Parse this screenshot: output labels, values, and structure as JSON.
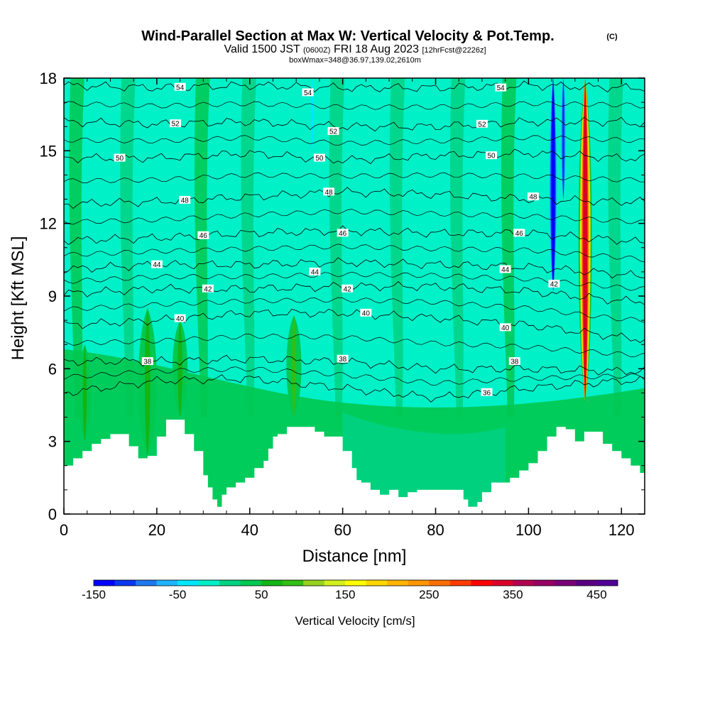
{
  "chart_data": {
    "type": "heatmap",
    "title": "Wind-Parallel Section at Max W: Vertical Velocity & Pot.Temp.",
    "title_mark": "(C)",
    "subtitle_parts": [
      "Valid 1500 JST",
      "(0600Z)",
      "FRI 18 Aug 2023",
      "[12hrFcst@2226z]"
    ],
    "subtitle2": "boxWmax=348@36.97,139.02,2610m",
    "xlabel": "Distance [nm]",
    "ylabel": "Height [Kft MSL]",
    "xlim": [
      0,
      125
    ],
    "ylim": [
      0,
      18
    ],
    "xticks": [
      0,
      20,
      40,
      60,
      80,
      100,
      120
    ],
    "yticks": [
      0,
      3,
      6,
      9,
      12,
      15,
      18
    ],
    "colorbar": {
      "label": "Vertical Velocity [cm/s]",
      "min": -150,
      "max": 475,
      "step": 25,
      "tick_labels": [
        -150,
        -50,
        50,
        150,
        250,
        350,
        450
      ],
      "colors": [
        "#0000ff",
        "#0a37f0",
        "#1e78f0",
        "#1eb4ff",
        "#00e6ff",
        "#00f0c8",
        "#00d282",
        "#00c850",
        "#14b414",
        "#32be14",
        "#96d21e",
        "#d2f01e",
        "#ffff00",
        "#ffd700",
        "#ffb400",
        "#ff9600",
        "#ff6e00",
        "#ff3c00",
        "#ff0000",
        "#dc0028",
        "#b40050",
        "#960064",
        "#780078",
        "#5a0082",
        "#500096"
      ]
    },
    "terrain_kft": [
      [
        0,
        2.0
      ],
      [
        2,
        2.3
      ],
      [
        4,
        2.6
      ],
      [
        6,
        2.9
      ],
      [
        8,
        3.1
      ],
      [
        10,
        3.3
      ],
      [
        12,
        3.3
      ],
      [
        14,
        2.8
      ],
      [
        16,
        2.3
      ],
      [
        18,
        2.4
      ],
      [
        20,
        3.2
      ],
      [
        22,
        3.9
      ],
      [
        24,
        3.9
      ],
      [
        26,
        3.3
      ],
      [
        28,
        2.6
      ],
      [
        30,
        1.6
      ],
      [
        31,
        1.1
      ],
      [
        32,
        0.6
      ],
      [
        33,
        0.3
      ],
      [
        34,
        0.8
      ],
      [
        35,
        1.1
      ],
      [
        37,
        1.3
      ],
      [
        39,
        1.5
      ],
      [
        41,
        1.9
      ],
      [
        43,
        2.2
      ],
      [
        44,
        2.7
      ],
      [
        45,
        3.2
      ],
      [
        46,
        3.3
      ],
      [
        48,
        3.6
      ],
      [
        50,
        3.6
      ],
      [
        52,
        3.6
      ],
      [
        54,
        3.4
      ],
      [
        56,
        3.2
      ],
      [
        58,
        3.2
      ],
      [
        60,
        2.6
      ],
      [
        62,
        1.9
      ],
      [
        63,
        1.4
      ],
      [
        64,
        1.3
      ],
      [
        66,
        1.0
      ],
      [
        68,
        0.8
      ],
      [
        70,
        1.0
      ],
      [
        72,
        0.7
      ],
      [
        74,
        0.9
      ],
      [
        76,
        1.0
      ],
      [
        78,
        1.0
      ],
      [
        80,
        1.0
      ],
      [
        82,
        1.0
      ],
      [
        84,
        1.0
      ],
      [
        86,
        0.6
      ],
      [
        87,
        0.3
      ],
      [
        89,
        0.5
      ],
      [
        90,
        0.9
      ],
      [
        92,
        1.3
      ],
      [
        94,
        1.3
      ],
      [
        96,
        1.5
      ],
      [
        98,
        1.8
      ],
      [
        100,
        2.1
      ],
      [
        102,
        2.6
      ],
      [
        104,
        3.2
      ],
      [
        106,
        3.6
      ],
      [
        108,
        3.5
      ],
      [
        110,
        3.0
      ],
      [
        112,
        3.4
      ],
      [
        114,
        3.4
      ],
      [
        116,
        2.9
      ],
      [
        118,
        2.6
      ],
      [
        120,
        2.3
      ],
      [
        122,
        2.0
      ],
      [
        124,
        1.7
      ],
      [
        125,
        1.6
      ]
    ],
    "updrafts": [
      {
        "x": 4.5,
        "y0": 3.0,
        "y1": 7.0,
        "w": 1.6,
        "value": 60
      },
      {
        "x": 18.0,
        "y0": 2.4,
        "y1": 8.5,
        "w": 2.5,
        "value": 60
      },
      {
        "x": 25.0,
        "y0": 4.0,
        "y1": 8.0,
        "w": 2.0,
        "value": 60
      },
      {
        "x": 49.5,
        "y0": 4.0,
        "y1": 8.2,
        "w": 2.0,
        "value": 75
      },
      {
        "x": 112.2,
        "y0": 4.6,
        "y1": 18.0,
        "w": 1.8,
        "value": 348
      }
    ],
    "downdrafts": [
      {
        "x": 105.3,
        "y0": 9.2,
        "y1": 18.0,
        "w": 1.2,
        "value": -150
      },
      {
        "x": 107.5,
        "y0": 13.0,
        "y1": 18.0,
        "w": 0.8,
        "value": -110
      },
      {
        "x": 53.5,
        "y0": 15.0,
        "y1": 18.0,
        "w": 0.7,
        "value": -50
      }
    ],
    "isentropes_kft_at": [
      0,
      20,
      40,
      60,
      80,
      100,
      120,
      125
    ],
    "isentropes": [
      {
        "value": 54,
        "y": [
          17.7,
          17.6,
          17.7,
          17.6,
          17.6,
          17.7,
          17.6,
          17.6
        ],
        "label": "54",
        "lx": 25
      },
      {
        "value": 52,
        "y": [
          16.2,
          16.1,
          16.2,
          16.0,
          16.0,
          16.2,
          16.2,
          16.1
        ],
        "label": "52",
        "lx": 24
      },
      {
        "value": 50,
        "y": [
          14.7,
          14.7,
          14.9,
          14.6,
          14.8,
          14.9,
          14.7,
          14.7
        ],
        "label": "50",
        "lx": 12
      },
      {
        "value": 48,
        "y": [
          12.8,
          12.9,
          13.1,
          13.3,
          13.2,
          13.0,
          12.9,
          12.9
        ],
        "label": "48",
        "lx": 26
      },
      {
        "value": 46,
        "y": [
          11.3,
          11.4,
          11.6,
          11.7,
          11.6,
          11.6,
          11.3,
          11.2
        ],
        "label": "46",
        "lx": 30
      },
      {
        "value": 44,
        "y": [
          10.1,
          10.3,
          10.3,
          10.4,
          10.3,
          10.2,
          9.9,
          9.8
        ],
        "label": "44",
        "lx": 20
      },
      {
        "value": 42,
        "y": [
          9.1,
          9.3,
          9.3,
          9.4,
          9.4,
          9.2,
          8.8,
          8.8
        ],
        "label": "42",
        "lx": 31
      },
      {
        "value": 40,
        "y": [
          7.8,
          8.0,
          8.3,
          8.3,
          8.1,
          7.8,
          7.3,
          7.2
        ],
        "label": "40",
        "lx": 25
      },
      {
        "value": 38,
        "y": [
          6.3,
          6.3,
          6.4,
          6.3,
          6.0,
          6.0,
          5.9,
          5.9
        ],
        "label": "38",
        "lx": 18
      },
      {
        "value": 36,
        "y": [
          5.0,
          5.5,
          5.6,
          5.2,
          4.8,
          5.2,
          5.5,
          5.5
        ],
        "label": "36",
        "lx": 91
      }
    ],
    "extra_labels": [
      {
        "text": "54",
        "x": 52.5,
        "y": 17.4
      },
      {
        "text": "54",
        "x": 94,
        "y": 17.6
      },
      {
        "text": "52",
        "x": 58,
        "y": 15.8
      },
      {
        "text": "52",
        "x": 90,
        "y": 16.1
      },
      {
        "text": "50",
        "x": 55,
        "y": 14.7
      },
      {
        "text": "50",
        "x": 92,
        "y": 14.8
      },
      {
        "text": "48",
        "x": 57,
        "y": 13.3
      },
      {
        "text": "48",
        "x": 101,
        "y": 13.1
      },
      {
        "text": "46",
        "x": 60,
        "y": 11.6
      },
      {
        "text": "46",
        "x": 98,
        "y": 11.6
      },
      {
        "text": "44",
        "x": 54,
        "y": 10.0
      },
      {
        "text": "44",
        "x": 95,
        "y": 10.1
      },
      {
        "text": "42",
        "x": 61,
        "y": 9.3
      },
      {
        "text": "42",
        "x": 105.5,
        "y": 9.5
      },
      {
        "text": "40",
        "x": 65,
        "y": 8.3
      },
      {
        "text": "40",
        "x": 95,
        "y": 7.7
      },
      {
        "text": "38",
        "x": 60,
        "y": 6.4
      },
      {
        "text": "38",
        "x": 97,
        "y": 6.3
      }
    ],
    "grid": false
  }
}
